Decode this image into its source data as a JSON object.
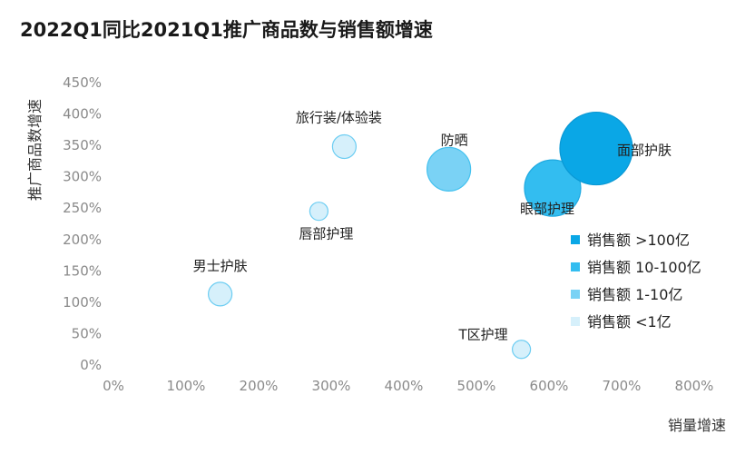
{
  "chart_data": {
    "type": "scatter",
    "title": "2022Q1同比2021Q1推广商品数与销售额增速",
    "xlabel": "销量增速",
    "ylabel": "推广商品数增速",
    "xlim": [
      0,
      800
    ],
    "ylim": [
      0,
      450
    ],
    "x_ticks": [
      "0%",
      "100%",
      "200%",
      "300%",
      "400%",
      "500%",
      "600%",
      "700%",
      "800%"
    ],
    "y_ticks": [
      "0%",
      "50%",
      "100%",
      "150%",
      "200%",
      "250%",
      "300%",
      "350%",
      "400%",
      "450%"
    ],
    "grid": false,
    "legend_position": "right",
    "legend": [
      {
        "label": "销售额 >100亿",
        "color": "#0aa7e6"
      },
      {
        "label": "销售额 10-100亿",
        "color": "#33bdf0"
      },
      {
        "label": "销售额 1-10亿",
        "color": "#7ad2f5"
      },
      {
        "label": "销售额 <1亿",
        "color": "#d6f0fb"
      }
    ],
    "points": [
      {
        "label": "面部护肤",
        "x": 665,
        "y": 345,
        "tier": 0,
        "size": 4
      },
      {
        "label": "眼部护理",
        "x": 605,
        "y": 282,
        "tier": 1,
        "size": 3
      },
      {
        "label": "防晒",
        "x": 462,
        "y": 312,
        "tier": 2,
        "size": 2
      },
      {
        "label": "旅行装/体验装",
        "x": 318,
        "y": 348,
        "tier": 3,
        "size": 1
      },
      {
        "label": "唇部护理",
        "x": 283,
        "y": 245,
        "tier": 3,
        "size": 0
      },
      {
        "label": "男士护肤",
        "x": 147,
        "y": 113,
        "tier": 3,
        "size": 1
      },
      {
        "label": "T区护理",
        "x": 562,
        "y": 25,
        "tier": 3,
        "size": 0
      }
    ]
  }
}
